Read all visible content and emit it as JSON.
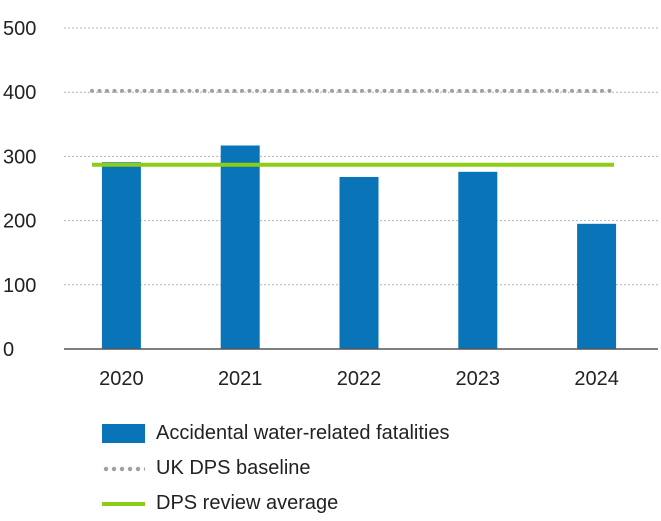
{
  "chart_data": {
    "type": "bar",
    "categories": [
      "2020",
      "2021",
      "2022",
      "2023",
      "2024"
    ],
    "series": [
      {
        "name": "Accidental water-related fatalities",
        "values": [
          291,
          317,
          268,
          276,
          195
        ],
        "kind": "bar"
      }
    ],
    "reference_lines": [
      {
        "name": "UK DPS baseline",
        "value": 402,
        "style": "dotted"
      },
      {
        "name": "DPS review average",
        "value": 287,
        "style": "solid"
      }
    ],
    "yticks": [
      "0",
      "100",
      "200",
      "300",
      "400",
      "500"
    ],
    "ylim": [
      0,
      500
    ],
    "grid": true,
    "legend_position": "bottom"
  },
  "colors": {
    "bar": "#0a74b9",
    "baseline": "#a0a0a0",
    "average": "#8ccd16",
    "grid": "#b4b4b4",
    "axis": "#555555"
  }
}
